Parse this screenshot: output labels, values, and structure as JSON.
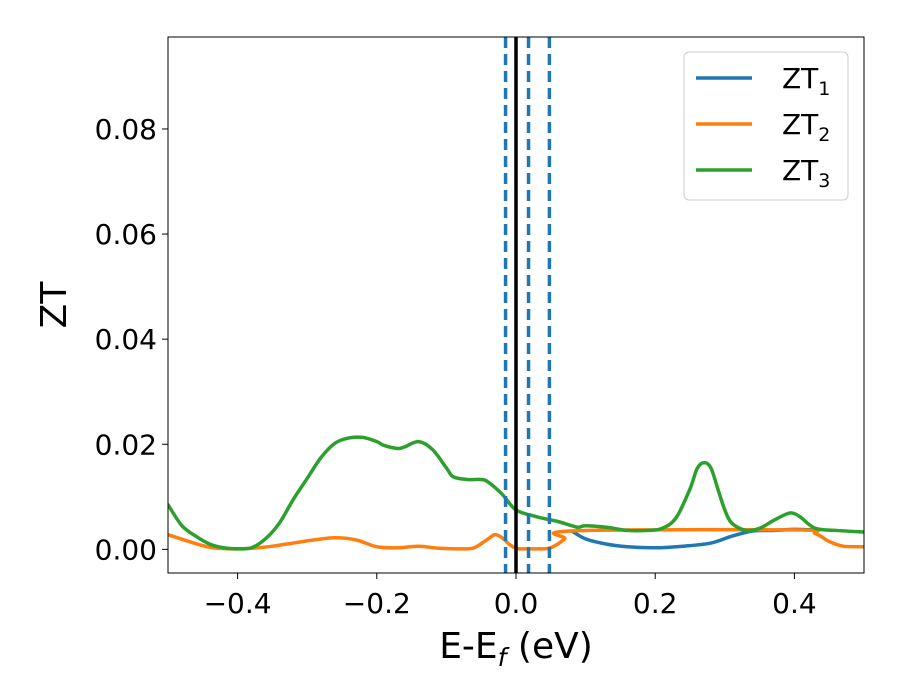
{
  "chart_data": {
    "type": "line",
    "xlabel": {
      "text": "E-E",
      "sub": "f",
      "unit": " (eV)"
    },
    "ylabel": "ZT",
    "xlim": [
      -0.5,
      0.5
    ],
    "ylim": [
      -0.0045,
      0.0975
    ],
    "xticks": [
      -0.4,
      -0.2,
      0.0,
      0.2,
      0.4
    ],
    "xtick_labels": [
      "−0.4",
      "−0.2",
      "0.0",
      "0.2",
      "0.4"
    ],
    "yticks": [
      0.0,
      0.02,
      0.04,
      0.06,
      0.08
    ],
    "ytick_labels": [
      "0.00",
      "0.02",
      "0.04",
      "0.06",
      "0.08"
    ],
    "grid": false,
    "legend_position": "top-right",
    "series": [
      {
        "name": "ZT",
        "sub": "1",
        "color": "#1f77b4",
        "x": [
          0.08,
          0.1,
          0.13,
          0.16,
          0.2,
          0.24,
          0.28,
          0.31,
          0.34,
          0.37,
          0.4,
          0.43
        ],
        "y": [
          0.0035,
          0.002,
          0.001,
          0.0005,
          0.0003,
          0.0006,
          0.0012,
          0.0025,
          0.0035,
          0.0036,
          0.0038,
          0.0037
        ]
      },
      {
        "name": "ZT",
        "sub": "2",
        "color": "#ff7f0e",
        "x": [
          -0.5,
          -0.47,
          -0.44,
          -0.41,
          -0.38,
          -0.35,
          -0.32,
          -0.29,
          -0.26,
          -0.23,
          -0.2,
          -0.17,
          -0.14,
          -0.11,
          -0.08,
          -0.06,
          -0.04,
          -0.03,
          -0.02,
          -0.01,
          0.0,
          0.01,
          0.03,
          0.05,
          0.07,
          0.08,
          0.4,
          0.43,
          0.45,
          0.47,
          0.5
        ],
        "y": [
          0.0028,
          0.0015,
          0.0004,
          0.0001,
          0.0002,
          0.0006,
          0.0012,
          0.0018,
          0.0022,
          0.0018,
          0.0005,
          0.0003,
          0.0006,
          0.0002,
          0.0001,
          0.0003,
          0.002,
          0.0028,
          0.0022,
          0.001,
          0.0002,
          0.0001,
          0.0001,
          0.0003,
          0.002,
          0.0035,
          0.0037,
          0.003,
          0.0015,
          0.0006,
          0.0005
        ]
      },
      {
        "name": "ZT",
        "sub": "3",
        "color": "#2ca02c",
        "x": [
          -0.5,
          -0.48,
          -0.46,
          -0.44,
          -0.42,
          -0.4,
          -0.38,
          -0.36,
          -0.34,
          -0.32,
          -0.3,
          -0.28,
          -0.26,
          -0.24,
          -0.22,
          -0.2,
          -0.19,
          -0.17,
          -0.16,
          -0.14,
          -0.12,
          -0.1,
          -0.09,
          -0.07,
          -0.05,
          -0.04,
          -0.02,
          0.0,
          0.03,
          0.06,
          0.08,
          0.09,
          0.1,
          0.13,
          0.16,
          0.19,
          0.21,
          0.23,
          0.25,
          0.26,
          0.27,
          0.28,
          0.29,
          0.3,
          0.31,
          0.33,
          0.35,
          0.37,
          0.39,
          0.4,
          0.41,
          0.43,
          0.46,
          0.5
        ],
        "y": [
          0.0085,
          0.0045,
          0.0025,
          0.001,
          0.0003,
          0.0001,
          0.0003,
          0.002,
          0.005,
          0.0095,
          0.0135,
          0.0175,
          0.0202,
          0.0212,
          0.0213,
          0.0205,
          0.0198,
          0.0192,
          0.0195,
          0.0205,
          0.019,
          0.0155,
          0.0138,
          0.0133,
          0.0133,
          0.0128,
          0.0105,
          0.0075,
          0.0062,
          0.0053,
          0.0045,
          0.0042,
          0.0045,
          0.0042,
          0.0036,
          0.0036,
          0.004,
          0.006,
          0.0115,
          0.0153,
          0.0165,
          0.0155,
          0.0115,
          0.0075,
          0.005,
          0.0036,
          0.004,
          0.0055,
          0.0068,
          0.0068,
          0.006,
          0.004,
          0.0036,
          0.0033
        ]
      }
    ],
    "vlines": [
      {
        "x": 0.0,
        "style": "solid",
        "color": "#000000"
      },
      {
        "x": -0.015,
        "style": "dashed",
        "color": "#1f77b4"
      },
      {
        "x": 0.018,
        "style": "dashed",
        "color": "#1f77b4"
      },
      {
        "x": 0.048,
        "style": "dashed",
        "color": "#1f77b4"
      }
    ]
  }
}
